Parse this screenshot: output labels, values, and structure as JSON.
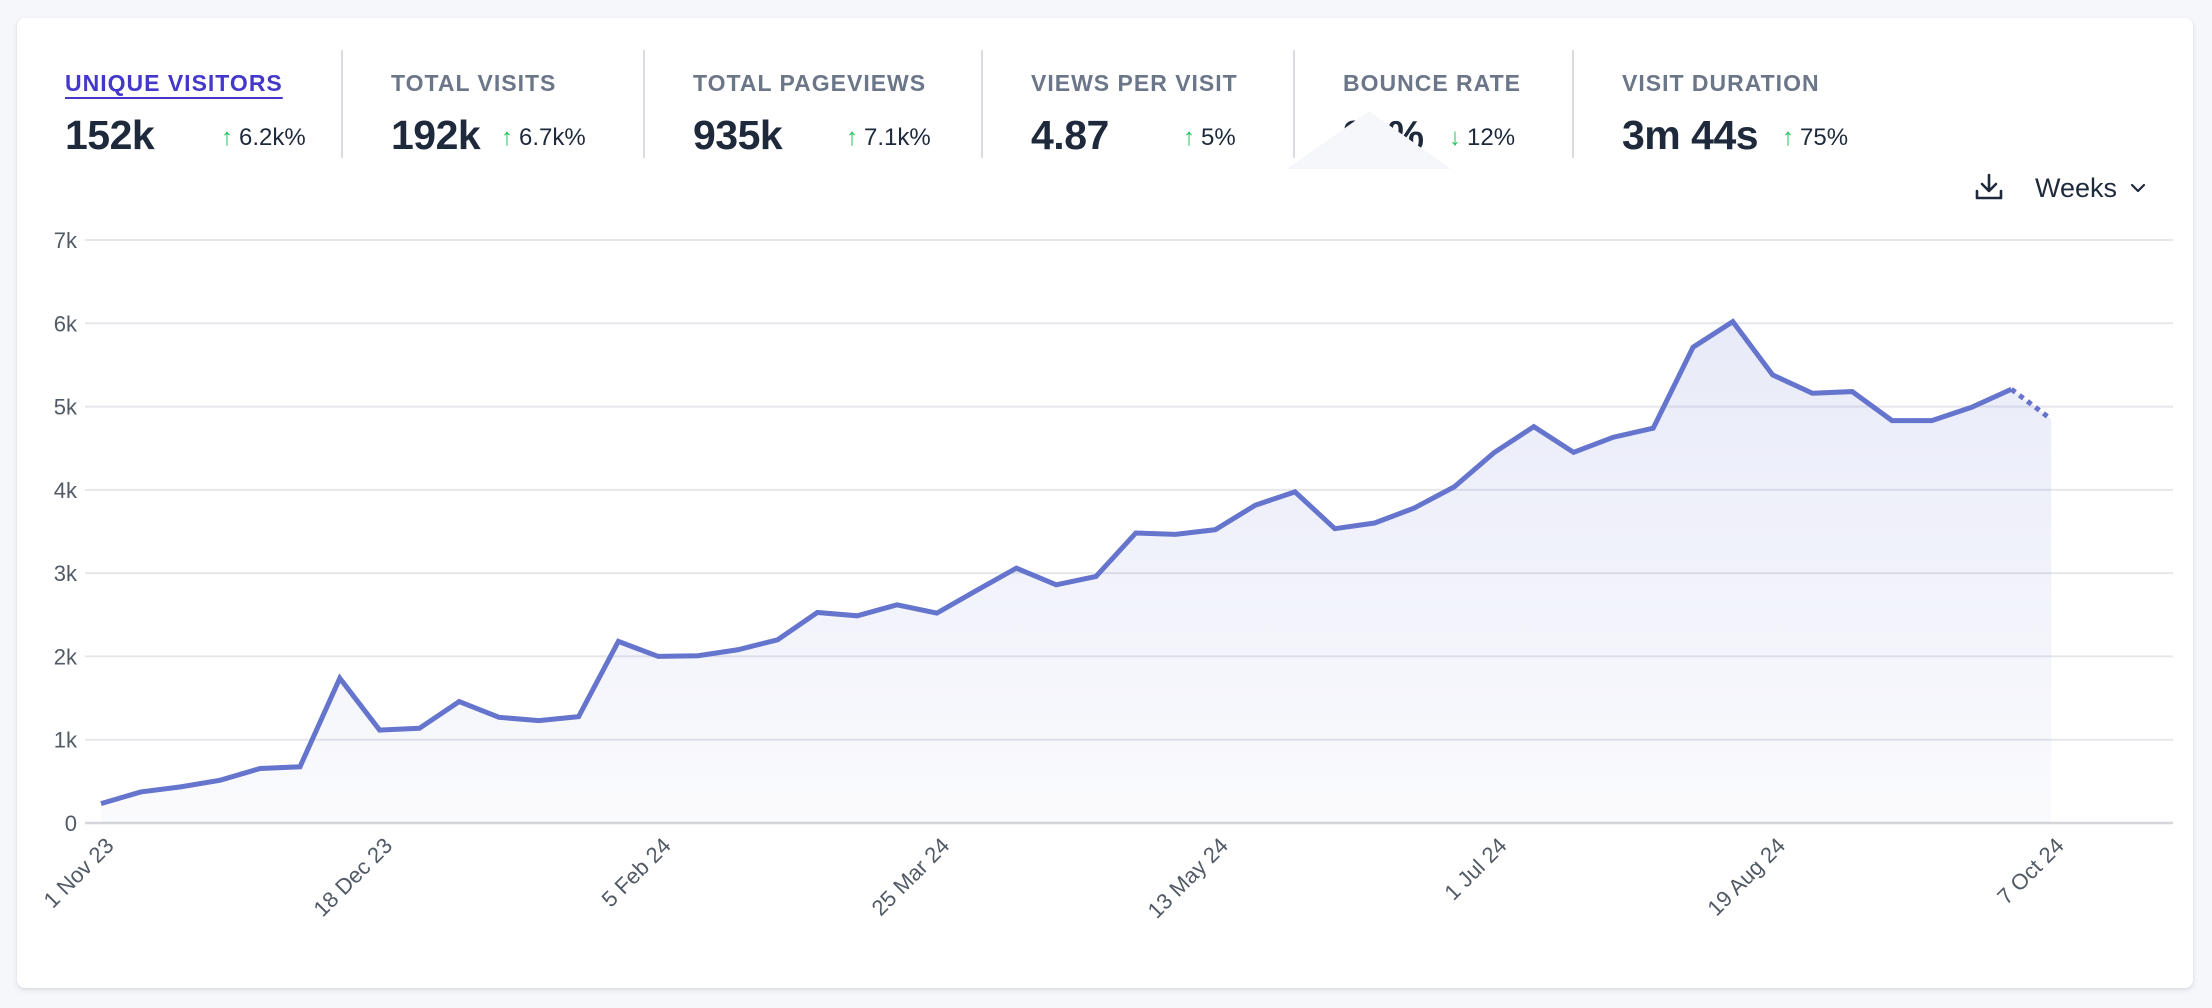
{
  "metrics": [
    {
      "label": "UNIQUE VISITORS",
      "value": "152k",
      "change": "6.2k%",
      "direction": "up",
      "active": true
    },
    {
      "label": "TOTAL VISITS",
      "value": "192k",
      "change": "6.7k%",
      "direction": "up",
      "active": false
    },
    {
      "label": "TOTAL PAGEVIEWS",
      "value": "935k",
      "change": "7.1k%",
      "direction": "up",
      "active": false
    },
    {
      "label": "VIEWS PER VISIT",
      "value": "4.87",
      "change": "5%",
      "direction": "up",
      "active": false
    },
    {
      "label": "BOUNCE RATE",
      "value": "33%",
      "change": "12%",
      "direction": "down",
      "active": false
    },
    {
      "label": "VISIT DURATION",
      "value": "3m 44s",
      "change": "75%",
      "direction": "up",
      "active": false
    }
  ],
  "arrows": {
    "up": "↑",
    "down": "↓"
  },
  "toolbar": {
    "download_icon": "download-icon",
    "interval_label": "Weeks",
    "interval_chevron": "⌄"
  },
  "colors": {
    "accent": "#4338ca",
    "line": "#6574cd",
    "positive": "#22c55e",
    "grid": "#e5e7eb",
    "axis_text": "#525a66"
  },
  "chart_data": {
    "type": "area",
    "title": "",
    "xlabel": "",
    "ylabel": "",
    "series": [
      {
        "name": "Unique visitors",
        "values": [
          233,
          373,
          434,
          514,
          655,
          675,
          1739,
          1116,
          1137,
          1458,
          1269,
          1229,
          1277,
          2181,
          2000,
          2008,
          2080,
          2200,
          2528,
          2488,
          2620,
          2520,
          2792,
          3060,
          2860,
          2960,
          3482,
          3466,
          3522,
          3815,
          3976,
          3534,
          3602,
          3783,
          4036,
          4446,
          4759,
          4450,
          4632,
          4740,
          5712,
          6020,
          5380,
          5160,
          5180,
          4832,
          4832,
          4992,
          5208,
          4848
        ],
        "incomplete_last_point": true
      }
    ],
    "x_tick_labels": [
      {
        "index": 0,
        "label": "1 Nov 23"
      },
      {
        "index": 7,
        "label": "18 Dec 23"
      },
      {
        "index": 14,
        "label": "5 Feb 24"
      },
      {
        "index": 21,
        "label": "25 Mar 24"
      },
      {
        "index": 28,
        "label": "13 May 24"
      },
      {
        "index": 35,
        "label": "1 Jul 24"
      },
      {
        "index": 42,
        "label": "19 Aug 24"
      },
      {
        "index": 49,
        "label": "7 Oct 24"
      }
    ],
    "y_ticks": [
      {
        "value": 0,
        "label": "0"
      },
      {
        "value": 1000,
        "label": "1k"
      },
      {
        "value": 2000,
        "label": "2k"
      },
      {
        "value": 3000,
        "label": "3k"
      },
      {
        "value": 4000,
        "label": "4k"
      },
      {
        "value": 5000,
        "label": "5k"
      },
      {
        "value": 6000,
        "label": "6k"
      },
      {
        "value": 7000,
        "label": "7k"
      }
    ],
    "ylim": [
      0,
      7000
    ],
    "grid": true,
    "legend": "none",
    "interval": "week"
  }
}
